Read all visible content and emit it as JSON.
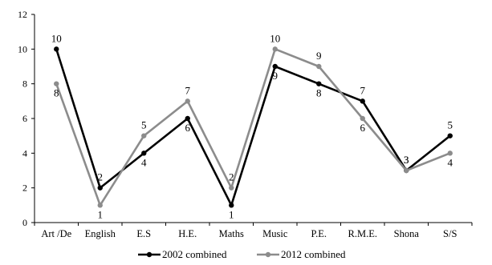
{
  "chart_data": {
    "type": "line",
    "title": "",
    "xlabel": "",
    "ylabel": "",
    "categories": [
      "Art /De",
      "English",
      "E.S",
      "H.E.",
      "Maths",
      "Music",
      "P.E.",
      "R.M.E.",
      "Shona",
      "S/S"
    ],
    "ylim": [
      0,
      12
    ],
    "yticks": [
      0,
      2,
      4,
      6,
      8,
      10,
      12
    ],
    "grid": false,
    "legend_position": "bottom",
    "series": [
      {
        "name": "2002 combined",
        "color": "#000000",
        "values": [
          10,
          2,
          4,
          6,
          1,
          9,
          8,
          7,
          3,
          5
        ]
      },
      {
        "name": "2012 combined",
        "color": "#8c8c8c",
        "values": [
          8,
          1,
          5,
          7,
          2,
          10,
          9,
          6,
          3,
          4
        ]
      }
    ],
    "data_labels": [
      [
        "10",
        "2",
        "4",
        "6",
        "1",
        "9",
        "8",
        "7",
        "3",
        "5"
      ],
      [
        "8",
        "1",
        "5",
        "7",
        "2",
        "10",
        "9",
        "6",
        "3",
        "4"
      ]
    ]
  }
}
